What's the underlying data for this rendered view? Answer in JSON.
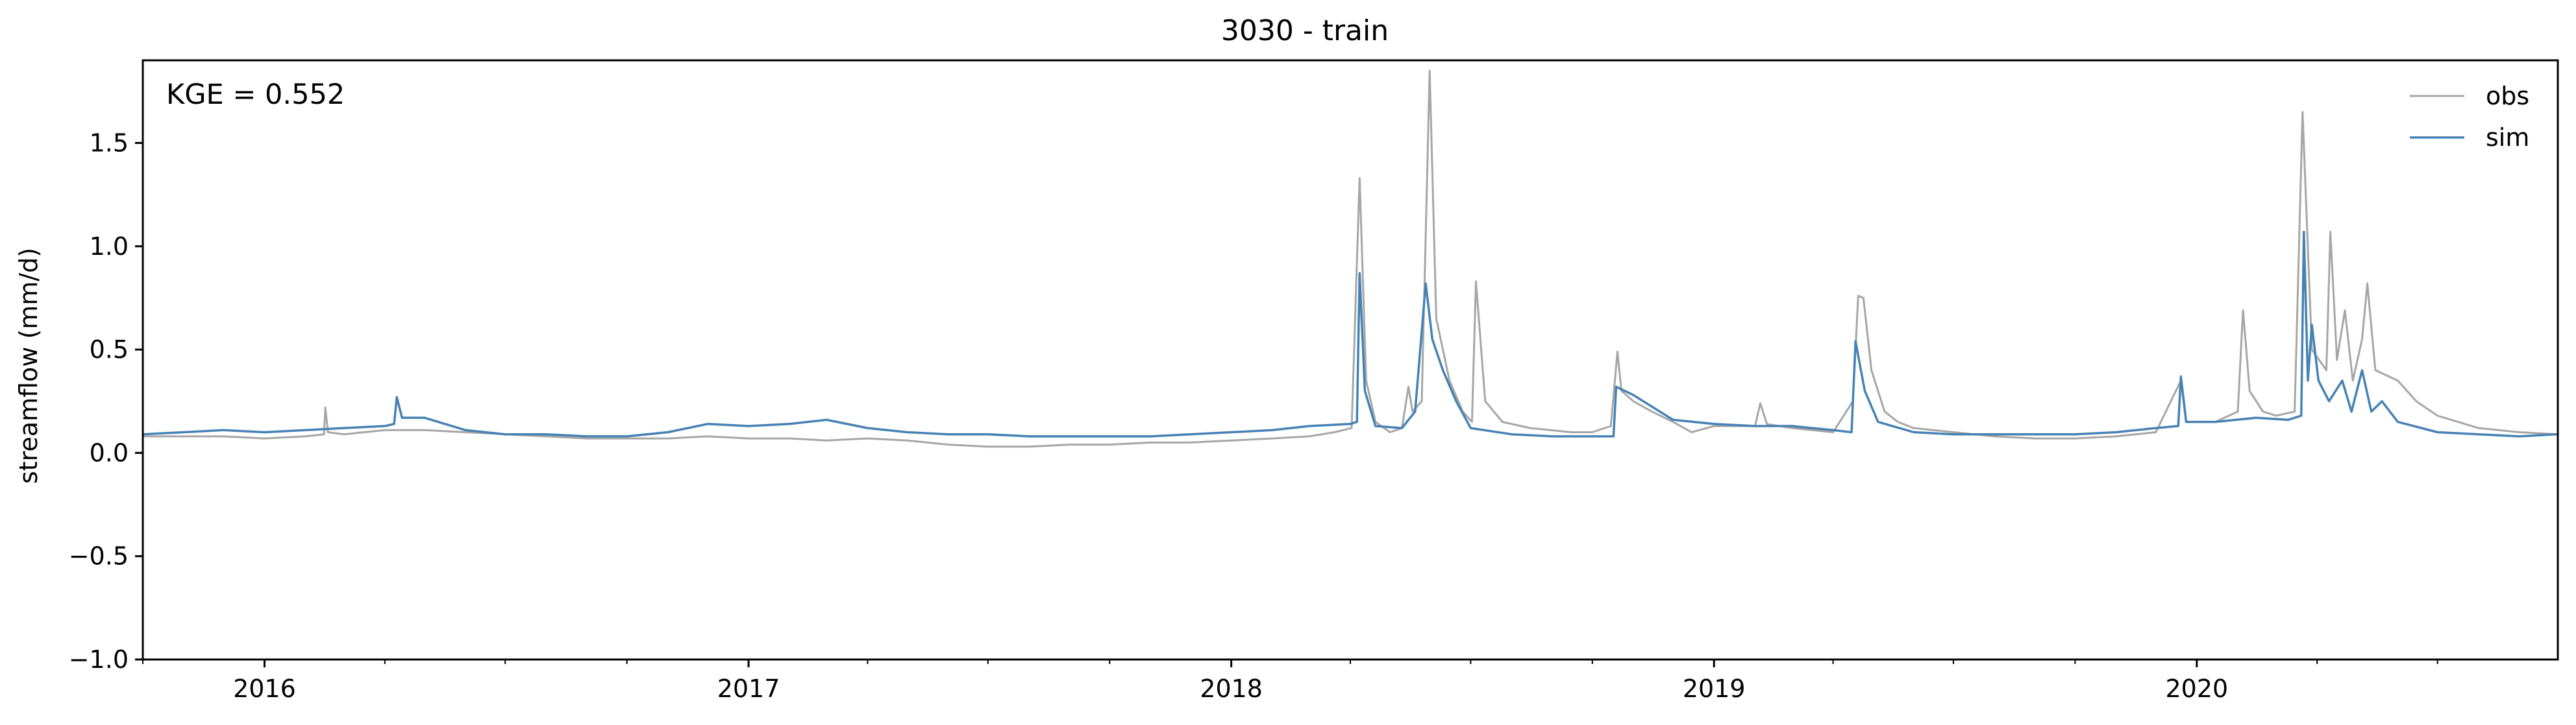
{
  "chart_data": {
    "type": "line",
    "title": "3030 - train",
    "xlabel": "",
    "ylabel": "streamflow (mm/d)",
    "annotation": "KGE = 0.552",
    "xlim": [
      "2015-10-01",
      "2020-09-30"
    ],
    "ylim": [
      -1.0,
      1.9
    ],
    "yticks": [
      -1.0,
      -0.5,
      0.0,
      0.5,
      1.0,
      1.5
    ],
    "ytick_labels": [
      "−1.0",
      "−0.5",
      "0.0",
      "0.5",
      "1.0",
      "1.5"
    ],
    "xticks": [
      "2016-01-01",
      "2017-01-01",
      "2018-01-01",
      "2019-01-01",
      "2020-01-01"
    ],
    "xtick_labels": [
      "2016",
      "2017",
      "2018",
      "2019",
      "2020"
    ],
    "grid": false,
    "legend_position": "top-right",
    "colors": {
      "obs": "#a6a6a6",
      "sim": "#4682b4"
    },
    "series": [
      {
        "name": "obs",
        "points": [
          [
            "2015-10-01",
            0.08
          ],
          [
            "2015-11-01",
            0.08
          ],
          [
            "2015-12-01",
            0.08
          ],
          [
            "2016-01-01",
            0.07
          ],
          [
            "2016-02-01",
            0.08
          ],
          [
            "2016-02-15",
            0.09
          ],
          [
            "2016-02-16",
            0.22
          ],
          [
            "2016-02-18",
            0.1
          ],
          [
            "2016-03-01",
            0.09
          ],
          [
            "2016-04-01",
            0.11
          ],
          [
            "2016-05-01",
            0.11
          ],
          [
            "2016-06-01",
            0.1
          ],
          [
            "2016-07-01",
            0.09
          ],
          [
            "2016-08-01",
            0.08
          ],
          [
            "2016-09-01",
            0.07
          ],
          [
            "2016-10-01",
            0.07
          ],
          [
            "2016-11-01",
            0.07
          ],
          [
            "2016-12-01",
            0.08
          ],
          [
            "2017-01-01",
            0.07
          ],
          [
            "2017-02-01",
            0.07
          ],
          [
            "2017-03-01",
            0.06
          ],
          [
            "2017-04-01",
            0.07
          ],
          [
            "2017-05-01",
            0.06
          ],
          [
            "2017-06-01",
            0.04
          ],
          [
            "2017-07-01",
            0.03
          ],
          [
            "2017-08-01",
            0.03
          ],
          [
            "2017-09-01",
            0.04
          ],
          [
            "2017-10-01",
            0.04
          ],
          [
            "2017-11-01",
            0.05
          ],
          [
            "2017-12-01",
            0.05
          ],
          [
            "2018-01-01",
            0.06
          ],
          [
            "2018-02-01",
            0.07
          ],
          [
            "2018-03-01",
            0.08
          ],
          [
            "2018-03-20",
            0.1
          ],
          [
            "2018-04-02",
            0.12
          ],
          [
            "2018-04-08",
            1.33
          ],
          [
            "2018-04-13",
            0.35
          ],
          [
            "2018-04-20",
            0.15
          ],
          [
            "2018-05-01",
            0.1
          ],
          [
            "2018-05-10",
            0.12
          ],
          [
            "2018-05-15",
            0.32
          ],
          [
            "2018-05-18",
            0.2
          ],
          [
            "2018-05-25",
            0.25
          ],
          [
            "2018-05-31",
            1.85
          ],
          [
            "2018-06-05",
            0.65
          ],
          [
            "2018-06-15",
            0.35
          ],
          [
            "2018-06-25",
            0.2
          ],
          [
            "2018-07-02",
            0.15
          ],
          [
            "2018-07-05",
            0.83
          ],
          [
            "2018-07-12",
            0.25
          ],
          [
            "2018-07-25",
            0.15
          ],
          [
            "2018-08-15",
            0.12
          ],
          [
            "2018-09-15",
            0.1
          ],
          [
            "2018-10-01",
            0.1
          ],
          [
            "2018-10-15",
            0.13
          ],
          [
            "2018-10-20",
            0.49
          ],
          [
            "2018-10-23",
            0.3
          ],
          [
            "2018-11-01",
            0.25
          ],
          [
            "2018-11-15",
            0.2
          ],
          [
            "2018-12-01",
            0.15
          ],
          [
            "2018-12-15",
            0.1
          ],
          [
            "2019-01-01",
            0.13
          ],
          [
            "2019-02-01",
            0.13
          ],
          [
            "2019-02-05",
            0.24
          ],
          [
            "2019-02-10",
            0.14
          ],
          [
            "2019-03-01",
            0.12
          ],
          [
            "2019-04-01",
            0.1
          ],
          [
            "2019-04-16",
            0.25
          ],
          [
            "2019-04-20",
            0.76
          ],
          [
            "2019-04-24",
            0.75
          ],
          [
            "2019-04-30",
            0.4
          ],
          [
            "2019-05-10",
            0.2
          ],
          [
            "2019-05-20",
            0.15
          ],
          [
            "2019-06-01",
            0.12
          ],
          [
            "2019-07-01",
            0.1
          ],
          [
            "2019-08-01",
            0.08
          ],
          [
            "2019-09-01",
            0.07
          ],
          [
            "2019-10-01",
            0.07
          ],
          [
            "2019-11-01",
            0.08
          ],
          [
            "2019-12-01",
            0.1
          ],
          [
            "2019-12-20",
            0.35
          ],
          [
            "2019-12-24",
            0.15
          ],
          [
            "2020-01-15",
            0.15
          ],
          [
            "2020-02-01",
            0.2
          ],
          [
            "2020-02-05",
            0.69
          ],
          [
            "2020-02-10",
            0.3
          ],
          [
            "2020-02-20",
            0.2
          ],
          [
            "2020-03-01",
            0.18
          ],
          [
            "2020-03-15",
            0.2
          ],
          [
            "2020-03-21",
            1.65
          ],
          [
            "2020-03-28",
            0.5
          ],
          [
            "2020-04-08",
            0.4
          ],
          [
            "2020-04-11",
            1.07
          ],
          [
            "2020-04-16",
            0.45
          ],
          [
            "2020-04-22",
            0.69
          ],
          [
            "2020-04-28",
            0.35
          ],
          [
            "2020-05-05",
            0.55
          ],
          [
            "2020-05-09",
            0.82
          ],
          [
            "2020-05-15",
            0.4
          ],
          [
            "2020-06-01",
            0.35
          ],
          [
            "2020-06-15",
            0.25
          ],
          [
            "2020-07-01",
            0.18
          ],
          [
            "2020-08-01",
            0.12
          ],
          [
            "2020-09-01",
            0.1
          ],
          [
            "2020-09-30",
            0.09
          ]
        ]
      },
      {
        "name": "sim",
        "points": [
          [
            "2015-10-01",
            0.09
          ],
          [
            "2015-11-01",
            0.1
          ],
          [
            "2015-12-01",
            0.11
          ],
          [
            "2016-01-01",
            0.1
          ],
          [
            "2016-02-01",
            0.11
          ],
          [
            "2016-03-01",
            0.12
          ],
          [
            "2016-04-01",
            0.13
          ],
          [
            "2016-04-08",
            0.14
          ],
          [
            "2016-04-10",
            0.27
          ],
          [
            "2016-04-14",
            0.17
          ],
          [
            "2016-05-01",
            0.17
          ],
          [
            "2016-06-01",
            0.11
          ],
          [
            "2016-07-01",
            0.09
          ],
          [
            "2016-08-01",
            0.09
          ],
          [
            "2016-09-01",
            0.08
          ],
          [
            "2016-10-01",
            0.08
          ],
          [
            "2016-11-01",
            0.1
          ],
          [
            "2016-12-01",
            0.14
          ],
          [
            "2017-01-01",
            0.13
          ],
          [
            "2017-02-01",
            0.14
          ],
          [
            "2017-03-01",
            0.16
          ],
          [
            "2017-04-01",
            0.12
          ],
          [
            "2017-05-01",
            0.1
          ],
          [
            "2017-06-01",
            0.09
          ],
          [
            "2017-07-01",
            0.09
          ],
          [
            "2017-08-01",
            0.08
          ],
          [
            "2017-09-01",
            0.08
          ],
          [
            "2017-10-01",
            0.08
          ],
          [
            "2017-11-01",
            0.08
          ],
          [
            "2017-12-01",
            0.09
          ],
          [
            "2018-01-01",
            0.1
          ],
          [
            "2018-02-01",
            0.11
          ],
          [
            "2018-03-01",
            0.13
          ],
          [
            "2018-04-01",
            0.14
          ],
          [
            "2018-04-06",
            0.15
          ],
          [
            "2018-04-08",
            0.87
          ],
          [
            "2018-04-12",
            0.3
          ],
          [
            "2018-04-20",
            0.13
          ],
          [
            "2018-05-10",
            0.12
          ],
          [
            "2018-05-20",
            0.2
          ],
          [
            "2018-05-28",
            0.82
          ],
          [
            "2018-06-02",
            0.55
          ],
          [
            "2018-06-10",
            0.4
          ],
          [
            "2018-06-20",
            0.25
          ],
          [
            "2018-07-01",
            0.12
          ],
          [
            "2018-08-01",
            0.09
          ],
          [
            "2018-09-01",
            0.08
          ],
          [
            "2018-10-17",
            0.08
          ],
          [
            "2018-10-19",
            0.32
          ],
          [
            "2018-11-01",
            0.28
          ],
          [
            "2018-12-01",
            0.16
          ],
          [
            "2019-01-01",
            0.14
          ],
          [
            "2019-02-01",
            0.13
          ],
          [
            "2019-03-01",
            0.13
          ],
          [
            "2019-04-01",
            0.11
          ],
          [
            "2019-04-15",
            0.1
          ],
          [
            "2019-04-18",
            0.54
          ],
          [
            "2019-04-25",
            0.3
          ],
          [
            "2019-05-05",
            0.15
          ],
          [
            "2019-06-01",
            0.1
          ],
          [
            "2019-07-01",
            0.09
          ],
          [
            "2019-08-01",
            0.09
          ],
          [
            "2019-09-01",
            0.09
          ],
          [
            "2019-10-01",
            0.09
          ],
          [
            "2019-11-01",
            0.1
          ],
          [
            "2019-12-01",
            0.12
          ],
          [
            "2019-12-18",
            0.13
          ],
          [
            "2019-12-20",
            0.37
          ],
          [
            "2019-12-24",
            0.15
          ],
          [
            "2020-01-15",
            0.15
          ],
          [
            "2020-02-15",
            0.17
          ],
          [
            "2020-03-10",
            0.16
          ],
          [
            "2020-03-20",
            0.18
          ],
          [
            "2020-03-22",
            1.07
          ],
          [
            "2020-03-25",
            0.35
          ],
          [
            "2020-03-28",
            0.62
          ],
          [
            "2020-04-02",
            0.35
          ],
          [
            "2020-04-10",
            0.25
          ],
          [
            "2020-04-20",
            0.35
          ],
          [
            "2020-04-27",
            0.2
          ],
          [
            "2020-05-05",
            0.4
          ],
          [
            "2020-05-12",
            0.2
          ],
          [
            "2020-05-20",
            0.25
          ],
          [
            "2020-06-01",
            0.15
          ],
          [
            "2020-07-01",
            0.1
          ],
          [
            "2020-08-01",
            0.09
          ],
          [
            "2020-09-01",
            0.08
          ],
          [
            "2020-09-30",
            0.09
          ]
        ]
      }
    ]
  }
}
